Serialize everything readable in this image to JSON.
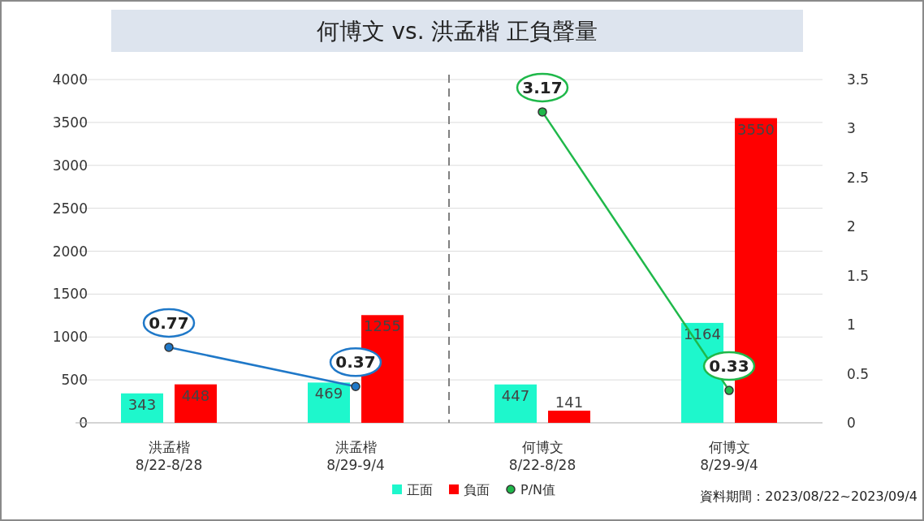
{
  "chart_data": {
    "type": "bar",
    "title": "何博文 vs. 洪孟楷 正負聲量",
    "categories": [
      "洪孟楷\n8/22-8/28",
      "洪孟楷\n8/29-9/4",
      "何博文\n8/22-8/28",
      "何博文\n8/29-9/4"
    ],
    "series": [
      {
        "name": "正面",
        "color": "#1ef7cc",
        "values": [
          343,
          469,
          447,
          1164
        ]
      },
      {
        "name": "負面",
        "color": "#ff0000",
        "values": [
          448,
          1255,
          141,
          3550
        ]
      },
      {
        "type": "line",
        "axis": "y2",
        "color": "#1f78c8",
        "marker": "circle",
        "values": [
          0.77,
          0.37,
          null,
          null
        ]
      },
      {
        "name": "P/N值",
        "type": "line",
        "axis": "y2",
        "color": "#1fb84a",
        "marker": "circle",
        "values": [
          null,
          null,
          3.17,
          0.33
        ]
      }
    ],
    "ylim": [
      0,
      4000
    ],
    "yticks": [
      0,
      500,
      1000,
      1500,
      2000,
      2500,
      3000,
      3500,
      4000
    ],
    "y2lim": [
      0,
      3.5
    ],
    "y2ticks": [
      0,
      0.5,
      1,
      1.5,
      2,
      2.5,
      3,
      3.5
    ],
    "grid": "y",
    "legend": "bottom",
    "data_labels": true,
    "annotations": [
      "資料期間：2023/08/22~2023/09/4"
    ]
  }
}
